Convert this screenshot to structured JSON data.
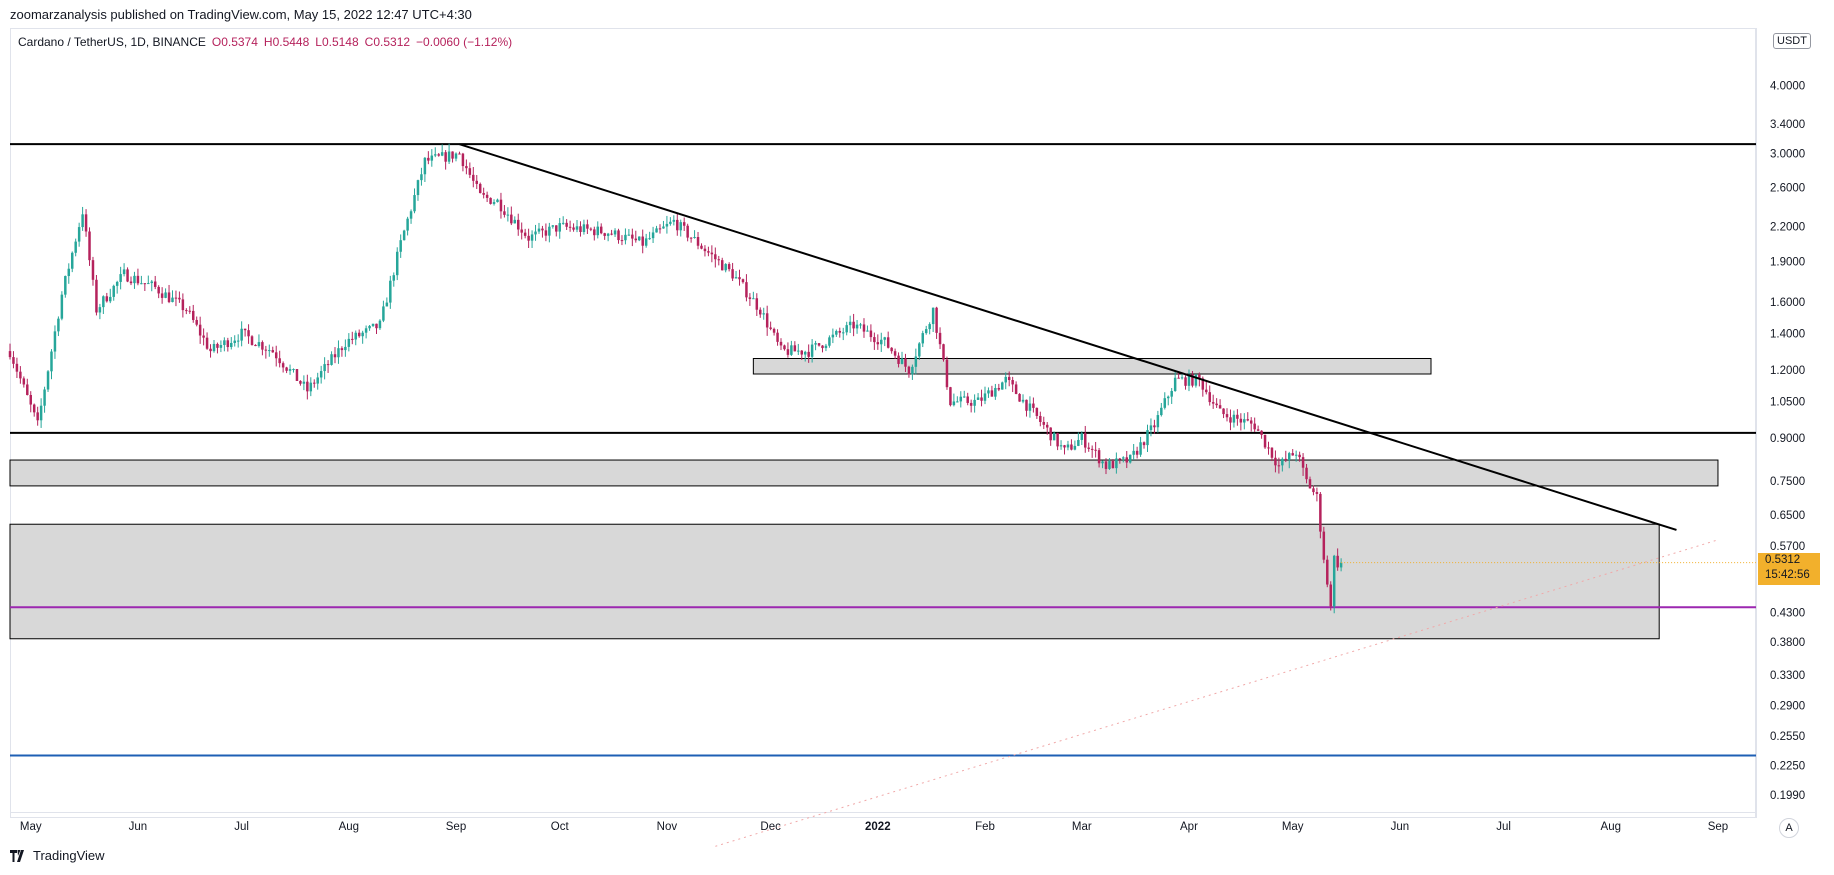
{
  "header": {
    "published_text": "zoomarzanalysis published on TradingView.com, May 15, 2022 12:47 UTC+4:30"
  },
  "legend": {
    "symbol": "Cardano / TetherUS, 1D, BINANCE",
    "open": "O0.5374",
    "high": "H0.5448",
    "low": "L0.5148",
    "close": "C0.5312",
    "change": "−0.0060 (−1.12%)"
  },
  "price_axis": {
    "unit_label": "USDT",
    "current_price_label": "0.5312",
    "countdown_label": "15:42:56"
  },
  "footer": {
    "brand": "TradingView"
  },
  "auto_scale_label": "A",
  "colors": {
    "up": "#26a69a",
    "down": "#b5225c",
    "zone_fill": "#d1d1d1",
    "purple_line": "#9c27b0",
    "blue_line": "#1e5fb4",
    "price_tag": "#f2b02c"
  },
  "chart_data": {
    "type": "candlestick",
    "symbol": "Cardano / TetherUS",
    "interval": "1D",
    "exchange": "BINANCE",
    "y_scale": "log",
    "ylim": [
      0.185,
      5.1
    ],
    "y_ticks": [
      "4.0000",
      "3.4000",
      "3.0000",
      "2.6000",
      "2.2000",
      "1.9000",
      "1.6000",
      "1.4000",
      "1.2000",
      "1.0500",
      "0.9000",
      "0.7500",
      "0.6500",
      "0.5700",
      "0.4300",
      "0.3800",
      "0.3300",
      "0.2900",
      "0.2550",
      "0.2250",
      "0.1990"
    ],
    "x_ticks": [
      "May",
      "Jun",
      "Jul",
      "Aug",
      "Sep",
      "Oct",
      "Nov",
      "Dec",
      "2022",
      "Feb",
      "Mar",
      "Apr",
      "May",
      "Jun",
      "Jul",
      "Aug",
      "Sep"
    ],
    "last_close": 0.5312,
    "price_path": [
      [
        "2021-04-25",
        1.3
      ],
      [
        "2021-05-03",
        0.95
      ],
      [
        "2021-05-10",
        1.65
      ],
      [
        "2021-05-16",
        2.35
      ],
      [
        "2021-05-20",
        1.55
      ],
      [
        "2021-05-28",
        1.8
      ],
      [
        "2021-06-06",
        1.7
      ],
      [
        "2021-06-15",
        1.55
      ],
      [
        "2021-06-22",
        1.3
      ],
      [
        "2021-07-01",
        1.4
      ],
      [
        "2021-07-10",
        1.3
      ],
      [
        "2021-07-20",
        1.1
      ],
      [
        "2021-07-31",
        1.35
      ],
      [
        "2021-08-10",
        1.45
      ],
      [
        "2021-08-16",
        2.05
      ],
      [
        "2021-08-23",
        2.9
      ],
      [
        "2021-09-02",
        3.0
      ],
      [
        "2021-09-08",
        2.5
      ],
      [
        "2021-09-13",
        2.45
      ],
      [
        "2021-09-22",
        2.1
      ],
      [
        "2021-10-01",
        2.2
      ],
      [
        "2021-10-15",
        2.15
      ],
      [
        "2021-10-25",
        2.05
      ],
      [
        "2021-11-03",
        2.25
      ],
      [
        "2021-11-10",
        2.05
      ],
      [
        "2021-11-20",
        1.8
      ],
      [
        "2021-11-28",
        1.55
      ],
      [
        "2021-12-04",
        1.3
      ],
      [
        "2021-12-12",
        1.3
      ],
      [
        "2021-12-25",
        1.45
      ],
      [
        "2022-01-03",
        1.35
      ],
      [
        "2022-01-10",
        1.2
      ],
      [
        "2022-01-17",
        1.55
      ],
      [
        "2022-01-22",
        1.05
      ],
      [
        "2022-01-30",
        1.05
      ],
      [
        "2022-02-07",
        1.15
      ],
      [
        "2022-02-15",
        1.0
      ],
      [
        "2022-02-24",
        0.85
      ],
      [
        "2022-03-01",
        0.9
      ],
      [
        "2022-03-08",
        0.8
      ],
      [
        "2022-03-15",
        0.82
      ],
      [
        "2022-03-22",
        0.95
      ],
      [
        "2022-03-28",
        1.15
      ],
      [
        "2022-04-04",
        1.15
      ],
      [
        "2022-04-10",
        1.0
      ],
      [
        "2022-04-20",
        0.95
      ],
      [
        "2022-04-27",
        0.8
      ],
      [
        "2022-05-02",
        0.85
      ],
      [
        "2022-05-05",
        0.75
      ],
      [
        "2022-05-08",
        0.7
      ],
      [
        "2022-05-11",
        0.48
      ],
      [
        "2022-05-12",
        0.45
      ],
      [
        "2022-05-13",
        0.54
      ],
      [
        "2022-05-14",
        0.53
      ],
      [
        "2022-05-15",
        0.5312
      ]
    ],
    "drawings": {
      "horizontal_lines": [
        {
          "price": 3.12,
          "color": "#000000"
        },
        {
          "price": 0.92,
          "color": "#000000"
        },
        {
          "price": 0.44,
          "color": "#9c27b0"
        },
        {
          "price": 0.235,
          "color": "#1e5fb4"
        }
      ],
      "zones": [
        {
          "from": "2021-11-26",
          "to": "2022-06-10",
          "low": 1.18,
          "high": 1.26
        },
        {
          "from": "2021-04-25",
          "to": "2022-09-01",
          "low": 0.735,
          "high": 0.82
        },
        {
          "from": "2021-04-25",
          "to": "2022-08-15",
          "low": 0.385,
          "high": 0.625
        }
      ],
      "trendline": {
        "from": [
          "2021-09-02",
          3.12
        ],
        "to": [
          "2022-08-20",
          0.61
        ]
      },
      "dotted_projection": {
        "from": [
          "2021-11-15",
          0.16
        ],
        "to": [
          "2022-09-01",
          0.585
        ]
      }
    }
  }
}
